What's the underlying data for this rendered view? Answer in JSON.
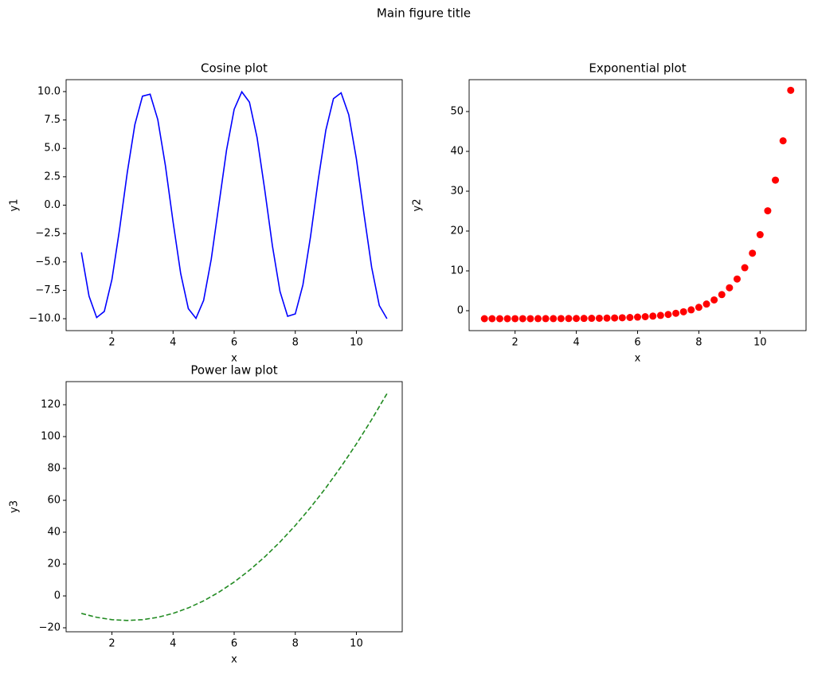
{
  "title": "Main figure title",
  "chart_data": [
    {
      "type": "line",
      "title": "Cosine plot",
      "xlabel": "x",
      "ylabel": "y1",
      "color": "#0000ff",
      "linestyle": "solid",
      "x": [
        1,
        1.25,
        1.5,
        1.75,
        2,
        2.25,
        2.5,
        2.75,
        3,
        3.25,
        3.5,
        3.75,
        4,
        4.25,
        4.5,
        4.75,
        5,
        5.25,
        5.5,
        5.75,
        6,
        6.25,
        6.5,
        6.75,
        7,
        7.25,
        7.5,
        7.75,
        8,
        8.25,
        8.5,
        8.75,
        9,
        9.25,
        9.5,
        9.75,
        10,
        10.25,
        10.5,
        10.75,
        11
      ],
      "values": [
        -4.16,
        -8.01,
        -9.9,
        -9.36,
        -6.54,
        -2.11,
        2.84,
        7.09,
        9.6,
        9.77,
        7.54,
        3.47,
        -1.46,
        -6.02,
        -9.11,
        -9.97,
        -8.39,
        -4.76,
        0.04,
        4.84,
        8.44,
        9.98,
        9.07,
        5.95,
        1.37,
        -3.55,
        -7.6,
        -9.79,
        -9.58,
        -7.02,
        -2.75,
        2.2,
        6.6,
        9.38,
        9.89,
        7.96,
        4.08,
        -0.81,
        -5.48,
        -8.84,
        -10
      ],
      "xlim": [
        0.5,
        11.5
      ],
      "ylim": [
        -11.05,
        11.05
      ],
      "xticks": [
        2,
        4,
        6,
        8,
        10
      ],
      "yticks": [
        {
          "value": -10,
          "label": "−10.0"
        },
        {
          "value": -7.5,
          "label": "−7.5"
        },
        {
          "value": -5,
          "label": "−5.0"
        },
        {
          "value": -2.5,
          "label": "−2.5"
        },
        {
          "value": 0,
          "label": "0.0"
        },
        {
          "value": 2.5,
          "label": "2.5"
        },
        {
          "value": 5,
          "label": "5.0"
        },
        {
          "value": 7.5,
          "label": "7.5"
        },
        {
          "value": 10,
          "label": "10.0"
        }
      ]
    },
    {
      "type": "scatter",
      "title": "Exponential plot",
      "xlabel": "x",
      "ylabel": "y2",
      "color": "#ff0000",
      "x": [
        1,
        1.25,
        1.5,
        1.75,
        2,
        2.25,
        2.5,
        2.75,
        3,
        3.25,
        3.5,
        3.75,
        4,
        4.25,
        4.5,
        4.75,
        5,
        5.25,
        5.5,
        5.75,
        6,
        6.25,
        6.5,
        6.75,
        7,
        7.25,
        7.5,
        7.75,
        8,
        8.25,
        8.5,
        8.75,
        9,
        9.25,
        9.5,
        9.75,
        10,
        10.25,
        10.5,
        10.75,
        11
      ],
      "values": [
        -2,
        -2,
        -2,
        -1.99,
        -1.99,
        -1.99,
        -1.99,
        -1.98,
        -1.98,
        -1.98,
        -1.97,
        -1.96,
        -1.95,
        -1.93,
        -1.91,
        -1.89,
        -1.86,
        -1.82,
        -1.77,
        -1.7,
        -1.61,
        -1.5,
        -1.36,
        -1.18,
        -0.95,
        -0.65,
        -0.27,
        0.22,
        0.85,
        1.67,
        2.71,
        4.04,
        5.76,
        7.96,
        10.79,
        14.43,
        19.09,
        25.08,
        32.78,
        42.65,
        55.33
      ],
      "xlim": [
        0.5,
        11.5
      ],
      "ylim": [
        -5,
        58
      ],
      "xticks": [
        2,
        4,
        6,
        8,
        10
      ],
      "yticks": [
        0,
        10,
        20,
        30,
        40,
        50
      ]
    },
    {
      "type": "line",
      "title": "Power law plot",
      "xlabel": "x",
      "ylabel": "y3",
      "color": "#228b22",
      "linestyle": "dashed",
      "x": [
        1,
        1.5,
        2,
        2.5,
        3,
        3.5,
        4,
        4.5,
        5,
        5.5,
        6,
        6.5,
        7,
        7.5,
        8,
        8.5,
        9,
        9.5,
        10,
        10.5,
        11
      ],
      "values": [
        -10.97,
        -13.43,
        -14.91,
        -15.4,
        -14.91,
        -13.43,
        -10.97,
        -7.52,
        -3.09,
        2.33,
        8.73,
        16.12,
        24.49,
        33.85,
        44.19,
        55.52,
        67.83,
        81.13,
        95.41,
        110.68,
        126.93
      ],
      "xlim": [
        0.5,
        11.5
      ],
      "ylim": [
        -22.5,
        134.5
      ],
      "xticks": [
        2,
        4,
        6,
        8,
        10
      ],
      "yticks": [
        {
          "value": -20,
          "label": "−20"
        },
        0,
        20,
        40,
        60,
        80,
        100,
        120
      ]
    }
  ]
}
